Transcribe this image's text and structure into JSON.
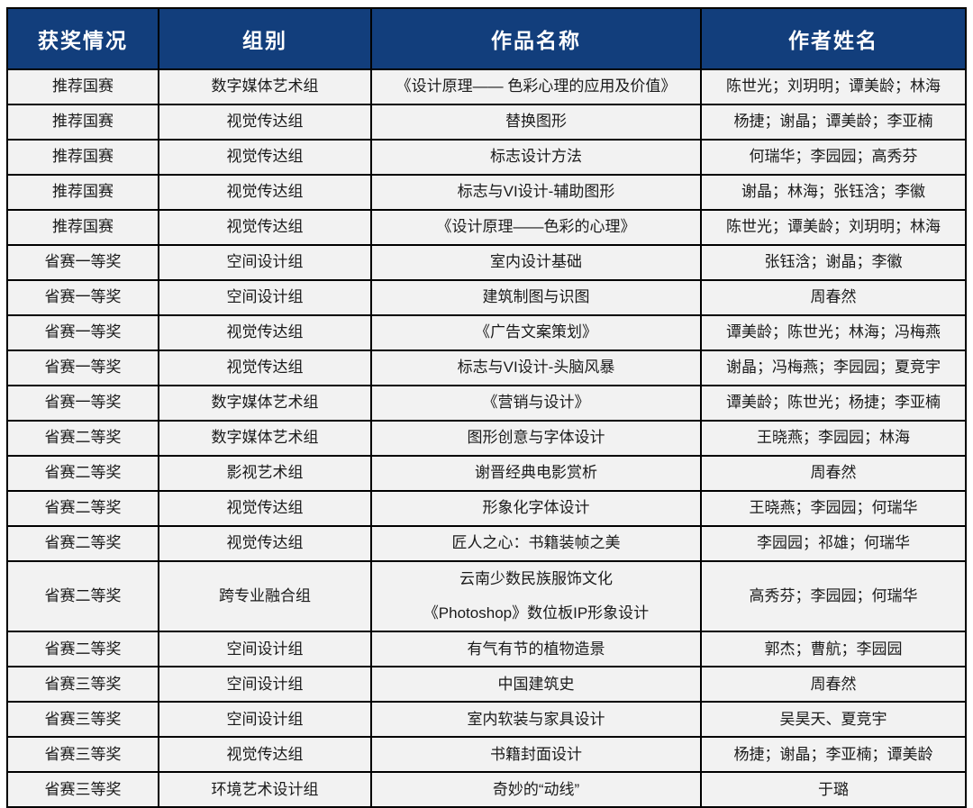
{
  "colors": {
    "header_bg": "#123E7C",
    "header_text": "#FFFFFF",
    "row_bg": "#F2F2F2",
    "grid_border": "#000000",
    "body_text": "#1A1A1A"
  },
  "table": {
    "columns": [
      {
        "key": "award",
        "label": "获奖情况"
      },
      {
        "key": "group",
        "label": "组别"
      },
      {
        "key": "work",
        "label": "作品名称"
      },
      {
        "key": "authors",
        "label": "作者姓名"
      }
    ],
    "rows": [
      {
        "award": "推荐国赛",
        "group": "数字媒体艺术组",
        "work": [
          "《设计原理—— 色彩心理的应用及价值》"
        ],
        "authors": "陈世光；刘玥明；谭美龄；林海"
      },
      {
        "award": "推荐国赛",
        "group": "视觉传达组",
        "work": [
          "替换图形"
        ],
        "authors": "杨捷；谢晶；谭美龄；李亚楠"
      },
      {
        "award": "推荐国赛",
        "group": "视觉传达组",
        "work": [
          "标志设计方法"
        ],
        "authors": "何瑞华；李园园；高秀芬"
      },
      {
        "award": "推荐国赛",
        "group": "视觉传达组",
        "work": [
          "标志与VI设计-辅助图形"
        ],
        "authors": "谢晶；林海；张钰浛；李徽"
      },
      {
        "award": "推荐国赛",
        "group": "视觉传达组",
        "work": [
          "《设计原理——色彩的心理》"
        ],
        "authors": "陈世光；谭美龄；刘玥明；林海"
      },
      {
        "award": "省赛一等奖",
        "group": "空间设计组",
        "work": [
          "室内设计基础"
        ],
        "authors": "张钰浛；谢晶；李徽"
      },
      {
        "award": "省赛一等奖",
        "group": "空间设计组",
        "work": [
          "建筑制图与识图"
        ],
        "authors": "周春然"
      },
      {
        "award": "省赛一等奖",
        "group": "视觉传达组",
        "work": [
          "《广告文案策划》"
        ],
        "authors": "谭美龄；陈世光；林海；冯梅燕"
      },
      {
        "award": "省赛一等奖",
        "group": "视觉传达组",
        "work": [
          "标志与VI设计-头脑风暴"
        ],
        "authors": "谢晶；冯梅燕；李园园；夏竞宇"
      },
      {
        "award": "省赛一等奖",
        "group": "数字媒体艺术组",
        "work": [
          "《营销与设计》"
        ],
        "authors": "谭美龄；陈世光；杨捷；李亚楠"
      },
      {
        "award": "省赛二等奖",
        "group": "数字媒体艺术组",
        "work": [
          "图形创意与字体设计"
        ],
        "authors": "王晓燕；李园园；林海"
      },
      {
        "award": "省赛二等奖",
        "group": "影视艺术组",
        "work": [
          "谢晋经典电影赏析"
        ],
        "authors": "周春然"
      },
      {
        "award": "省赛二等奖",
        "group": "视觉传达组",
        "work": [
          "形象化字体设计"
        ],
        "authors": "王晓燕；李园园；何瑞华"
      },
      {
        "award": "省赛二等奖",
        "group": "视觉传达组",
        "work": [
          "匠人之心：书籍装帧之美"
        ],
        "authors": "李园园；祁雄；何瑞华"
      },
      {
        "award": "省赛二等奖",
        "group": "跨专业融合组",
        "work": [
          "云南少数民族服饰文化",
          "《Photoshop》数位板IP形象设计"
        ],
        "authors": "高秀芬；李园园；何瑞华"
      },
      {
        "award": "省赛二等奖",
        "group": "空间设计组",
        "work": [
          "有气有节的植物造景"
        ],
        "authors": "郭杰；曹航；李园园"
      },
      {
        "award": "省赛三等奖",
        "group": "空间设计组",
        "work": [
          "中国建筑史"
        ],
        "authors": "周春然"
      },
      {
        "award": "省赛三等奖",
        "group": "空间设计组",
        "work": [
          "室内软装与家具设计"
        ],
        "authors": "吴昊天、夏竞宇"
      },
      {
        "award": "省赛三等奖",
        "group": "视觉传达组",
        "work": [
          "书籍封面设计"
        ],
        "authors": "杨捷；谢晶；李亚楠；谭美龄"
      },
      {
        "award": "省赛三等奖",
        "group": "环境艺术设计组",
        "work": [
          "奇妙的“动线”"
        ],
        "authors": "于璐"
      }
    ]
  }
}
